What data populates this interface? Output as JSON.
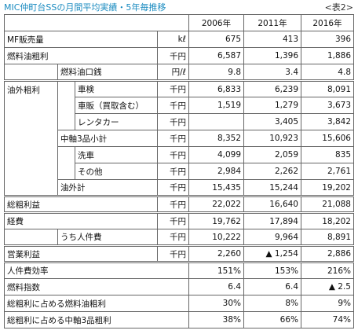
{
  "header": {
    "title": "MIC仲町台SSの月間平均実績・5年毎推移",
    "note": "<表2>"
  },
  "table": {
    "columns": [
      "2006年",
      "2011年",
      "2016年"
    ],
    "rows": [
      {
        "label": "MF販売量",
        "unit": "kℓ",
        "values": [
          "675",
          "413",
          "396"
        ]
      },
      {
        "label": "燃料油粗利",
        "unit": "千円",
        "values": [
          "6,587",
          "1,396",
          "1,886"
        ]
      },
      {
        "label": "燃料油口銭",
        "unit": "円/ℓ",
        "values": [
          "9.8",
          "3.4",
          "4.8"
        ]
      },
      {
        "group": "油外粗利",
        "label": "車検",
        "unit": "千円",
        "values": [
          "6,833",
          "6,239",
          "8,091"
        ]
      },
      {
        "label": "車販（買取含む）",
        "unit": "千円",
        "values": [
          "1,519",
          "1,279",
          "3,673"
        ]
      },
      {
        "label": "レンタカー",
        "unit": "千円",
        "values": [
          null,
          "3,405",
          "3,842"
        ]
      },
      {
        "label": "中軸3品小計",
        "unit": "千円",
        "values": [
          "8,352",
          "10,923",
          "15,606"
        ]
      },
      {
        "label": "洗車",
        "unit": "千円",
        "values": [
          "4,099",
          "2,059",
          "835"
        ]
      },
      {
        "label": "その他",
        "unit": "千円",
        "values": [
          "2,984",
          "2,262",
          "2,761"
        ]
      },
      {
        "label": "油外計",
        "unit": "千円",
        "values": [
          "15,435",
          "15,244",
          "19,202"
        ]
      },
      {
        "label": "総粗利益",
        "unit": "千円",
        "values": [
          "22,022",
          "16,640",
          "21,088"
        ]
      },
      {
        "label": "経費",
        "unit": "千円",
        "values": [
          "19,762",
          "17,894",
          "18,202"
        ]
      },
      {
        "label": "うち人件費",
        "unit": "千円",
        "values": [
          "10,222",
          "9,964",
          "8,891"
        ]
      },
      {
        "label": "営業利益",
        "unit": "千円",
        "values": [
          "2,260",
          "▲ 1,254",
          "2,886"
        ]
      },
      {
        "label": "人件費効率",
        "values": [
          "151%",
          "153%",
          "216%"
        ]
      },
      {
        "label": "燃料指数",
        "values": [
          "6.4",
          "6.4",
          "▲ 2.5"
        ]
      },
      {
        "label": "総粗利に占める燃料油粗利",
        "values": [
          "30%",
          "8%",
          "9%"
        ]
      },
      {
        "label": "総粗利に占める中軸3品粗利",
        "values": [
          "38%",
          "66%",
          "74%"
        ]
      }
    ]
  }
}
